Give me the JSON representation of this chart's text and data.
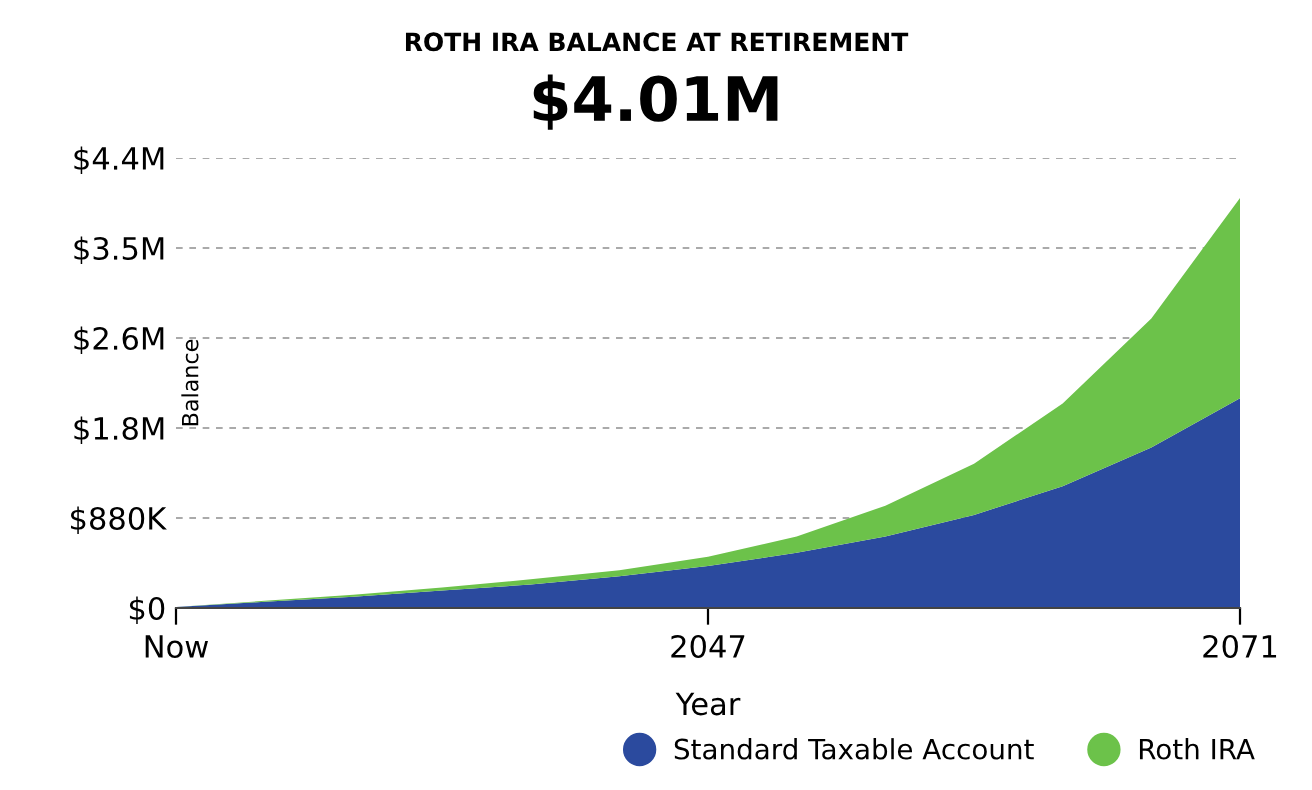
{
  "chart_data": {
    "type": "area",
    "title": "ROTH IRA BALANCE AT RETIREMENT",
    "subtitle": "$4.01M",
    "xlabel": "Year",
    "ylabel": "Balance",
    "x": [
      2023,
      2027,
      2031,
      2035,
      2039,
      2043,
      2047,
      2051,
      2055,
      2059,
      2063,
      2067,
      2071
    ],
    "stacked": true,
    "series": [
      {
        "name": "Standard Taxable Account",
        "color": "#2b4a9e",
        "values": [
          10000,
          60000,
          110000,
          170000,
          230000,
          310000,
          410000,
          540000,
          700000,
          910000,
          1190000,
          1570000,
          2050000
        ]
      },
      {
        "name": "Roth IRA",
        "color": "#6cc24a",
        "values": [
          0,
          10000,
          20000,
          30000,
          50000,
          60000,
          90000,
          160000,
          300000,
          500000,
          810000,
          1260000,
          1960000
        ]
      }
    ],
    "xlim": [
      2023,
      2071
    ],
    "xticks": [
      {
        "value": 2023,
        "label": "Now"
      },
      2047,
      2071
    ],
    "ylim": [
      0,
      4400000
    ],
    "yticks": [
      {
        "value": 0,
        "label": "$0"
      },
      {
        "value": 880000,
        "label": "$880K"
      },
      {
        "value": 1760000,
        "label": "$1.8M"
      },
      {
        "value": 2640000,
        "label": "$2.6M"
      },
      {
        "value": 3520000,
        "label": "$3.5M"
      },
      {
        "value": 4400000,
        "label": "$4.4M"
      }
    ],
    "grid": "y",
    "legend": "bottom right"
  }
}
